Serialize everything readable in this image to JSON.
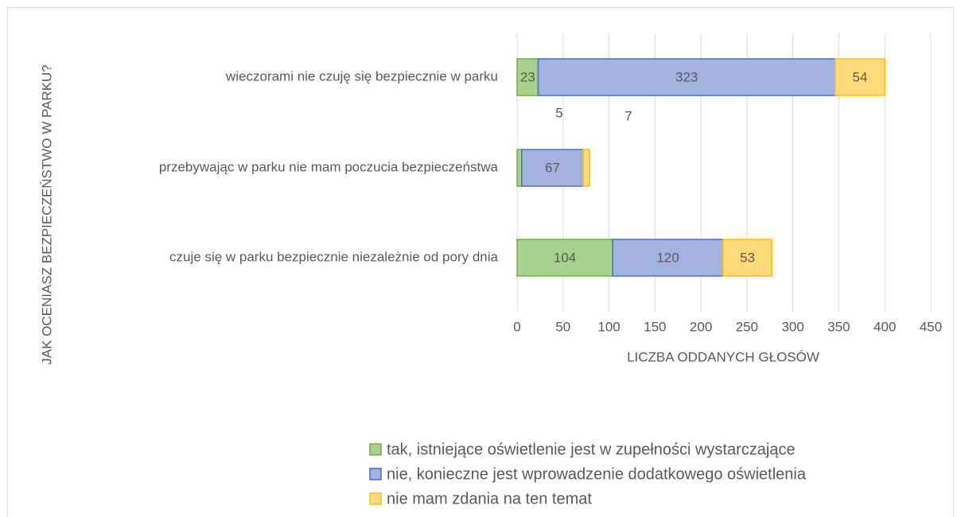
{
  "chart_data": {
    "type": "barh_stacked",
    "ylabel": "JAK OCENIASZ BEZPIECZEŃSTWO W PARKU?",
    "xlabel": "LICZBA ODDANYCH GŁOSÓW",
    "categories": [
      "wieczorami nie czuję się bezpiecznie w parku",
      "przebywając w parku nie mam poczucia bezpieczeństwa",
      "czuje się w parku bezpiecznie niezależnie od pory dnia"
    ],
    "series": [
      {
        "name": "tak, istniejące oświetlenie jest w zupełności wystarczające",
        "color": "#a9d18e",
        "edgecolor": "#70ad47",
        "values": [
          23,
          5,
          104
        ]
      },
      {
        "name": "nie, konieczne jest wprowadzenie dodatkowego oświetlenia",
        "color": "#a4b2e0",
        "edgecolor": "#4472c4",
        "values": [
          323,
          67,
          120
        ]
      },
      {
        "name": "nie mam zdania na ten temat",
        "color": "#ffd97a",
        "edgecolor": "#ffc000",
        "values": [
          54,
          7,
          53
        ]
      }
    ],
    "xlim": [
      0,
      450
    ],
    "xticks": [
      0,
      50,
      100,
      150,
      200,
      250,
      300,
      350,
      400,
      450
    ],
    "grid": true,
    "legend": "bottom"
  }
}
